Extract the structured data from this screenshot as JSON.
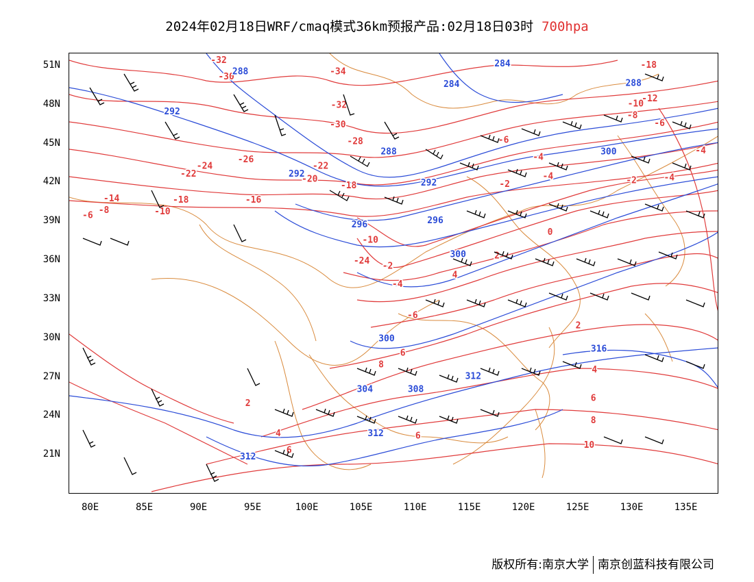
{
  "title": {
    "text": "2024年02月18日WRF/cmaq模式36km预报产品:02月18日03时",
    "level": "700hpa",
    "level_color": "#e03030"
  },
  "map": {
    "lon_range": [
      78,
      138
    ],
    "lat_range": [
      18,
      52
    ],
    "lat_labels": [
      "51N",
      "48N",
      "45N",
      "42N",
      "39N",
      "36N",
      "33N",
      "30N",
      "27N",
      "24N",
      "21N"
    ],
    "lat_values": [
      51,
      48,
      45,
      42,
      39,
      36,
      33,
      30,
      27,
      24,
      21
    ],
    "lon_labels": [
      "80E",
      "85E",
      "90E",
      "95E",
      "100E",
      "105E",
      "110E",
      "115E",
      "120E",
      "125E",
      "130E",
      "135E"
    ],
    "lon_values": [
      80,
      85,
      90,
      95,
      100,
      105,
      110,
      115,
      120,
      125,
      130,
      135
    ],
    "colors": {
      "temperature": "#e03a3a",
      "geopotential": "#2a4bd7",
      "boundary": "#d98a3c",
      "wind": "#000000"
    },
    "temperature_labels": [
      {
        "text": "-32",
        "lon": 91.8,
        "lat": 51.5
      },
      {
        "text": "-30",
        "lon": 92.5,
        "lat": 50.0
      },
      {
        "text": "-34",
        "lon": 102.8,
        "lat": 50.4
      },
      {
        "text": "-32",
        "lon": 102.9,
        "lat": 47.8
      },
      {
        "text": "-30",
        "lon": 102.8,
        "lat": 46.3
      },
      {
        "text": "-28",
        "lon": 104.4,
        "lat": 45.0
      },
      {
        "text": "-26",
        "lon": 94.3,
        "lat": 43.6
      },
      {
        "text": "-24",
        "lon": 90.5,
        "lat": 43.1
      },
      {
        "text": "-22",
        "lon": 89.0,
        "lat": 42.5
      },
      {
        "text": "-22",
        "lon": 101.2,
        "lat": 43.1
      },
      {
        "text": "-20",
        "lon": 100.2,
        "lat": 42.1
      },
      {
        "text": "-18",
        "lon": 103.8,
        "lat": 41.6
      },
      {
        "text": "-18",
        "lon": 88.3,
        "lat": 40.5
      },
      {
        "text": "-16",
        "lon": 95.0,
        "lat": 40.5
      },
      {
        "text": "-14",
        "lon": 81.9,
        "lat": 40.6
      },
      {
        "text": "-10",
        "lon": 86.6,
        "lat": 39.6
      },
      {
        "text": "-8",
        "lon": 81.2,
        "lat": 39.7
      },
      {
        "text": "-6",
        "lon": 79.7,
        "lat": 39.3
      },
      {
        "text": "-10",
        "lon": 105.8,
        "lat": 37.4
      },
      {
        "text": "-24",
        "lon": 105.0,
        "lat": 35.8
      },
      {
        "text": "-2",
        "lon": 107.4,
        "lat": 35.4
      },
      {
        "text": "-4",
        "lon": 108.3,
        "lat": 34.0
      },
      {
        "text": "-6",
        "lon": 109.7,
        "lat": 31.6
      },
      {
        "text": "-6",
        "lon": 118.1,
        "lat": 45.1
      },
      {
        "text": "-4",
        "lon": 121.3,
        "lat": 43.8
      },
      {
        "text": "-2",
        "lon": 118.2,
        "lat": 41.7
      },
      {
        "text": "-4",
        "lon": 122.2,
        "lat": 42.3
      },
      {
        "text": "0",
        "lon": 122.4,
        "lat": 38.0
      },
      {
        "text": "2",
        "lon": 117.5,
        "lat": 36.2
      },
      {
        "text": "4",
        "lon": 113.6,
        "lat": 34.7
      },
      {
        "text": "2",
        "lon": 125.0,
        "lat": 30.8
      },
      {
        "text": "-18",
        "lon": 131.5,
        "lat": 50.9
      },
      {
        "text": "-12",
        "lon": 131.6,
        "lat": 48.3
      },
      {
        "text": "-10",
        "lon": 130.3,
        "lat": 47.9
      },
      {
        "text": "-8",
        "lon": 130.0,
        "lat": 47.0
      },
      {
        "text": "-6",
        "lon": 132.5,
        "lat": 46.4
      },
      {
        "text": "-4",
        "lon": 136.3,
        "lat": 44.3
      },
      {
        "text": "-4",
        "lon": 133.4,
        "lat": 42.2
      },
      {
        "text": "-2",
        "lon": 129.9,
        "lat": 42.0
      },
      {
        "text": "2",
        "lon": 94.5,
        "lat": 24.8
      },
      {
        "text": "4",
        "lon": 97.3,
        "lat": 22.5
      },
      {
        "text": "6",
        "lon": 98.3,
        "lat": 21.2
      },
      {
        "text": "6",
        "lon": 108.8,
        "lat": 28.7
      },
      {
        "text": "8",
        "lon": 106.8,
        "lat": 27.8
      },
      {
        "text": "6",
        "lon": 110.2,
        "lat": 22.3
      },
      {
        "text": "4",
        "lon": 126.5,
        "lat": 27.4
      },
      {
        "text": "6",
        "lon": 126.4,
        "lat": 25.2
      },
      {
        "text": "8",
        "lon": 126.4,
        "lat": 23.5
      },
      {
        "text": "10",
        "lon": 126.0,
        "lat": 21.6
      }
    ],
    "geopotential_labels": [
      {
        "text": "288",
        "lon": 93.8,
        "lat": 50.4
      },
      {
        "text": "292",
        "lon": 87.5,
        "lat": 47.3
      },
      {
        "text": "284",
        "lon": 118.0,
        "lat": 51.0
      },
      {
        "text": "284",
        "lon": 113.3,
        "lat": 49.4
      },
      {
        "text": "288",
        "lon": 130.1,
        "lat": 49.5
      },
      {
        "text": "288",
        "lon": 107.5,
        "lat": 44.2
      },
      {
        "text": "292",
        "lon": 99.0,
        "lat": 42.5
      },
      {
        "text": "292",
        "lon": 111.2,
        "lat": 41.8
      },
      {
        "text": "296",
        "lon": 104.8,
        "lat": 38.6
      },
      {
        "text": "296",
        "lon": 111.8,
        "lat": 38.9
      },
      {
        "text": "300",
        "lon": 113.9,
        "lat": 36.3
      },
      {
        "text": "300",
        "lon": 127.8,
        "lat": 44.2
      },
      {
        "text": "300",
        "lon": 107.3,
        "lat": 29.8
      },
      {
        "text": "304",
        "lon": 105.3,
        "lat": 25.9
      },
      {
        "text": "308",
        "lon": 110.0,
        "lat": 25.9
      },
      {
        "text": "312",
        "lon": 115.3,
        "lat": 26.9
      },
      {
        "text": "312",
        "lon": 106.3,
        "lat": 22.5
      },
      {
        "text": "312",
        "lon": 94.5,
        "lat": 20.7
      },
      {
        "text": "316",
        "lon": 126.9,
        "lat": 29.0
      }
    ]
  },
  "footer": {
    "left": "版权所有:南京大学",
    "right": "南京创蓝科技有限公司"
  }
}
